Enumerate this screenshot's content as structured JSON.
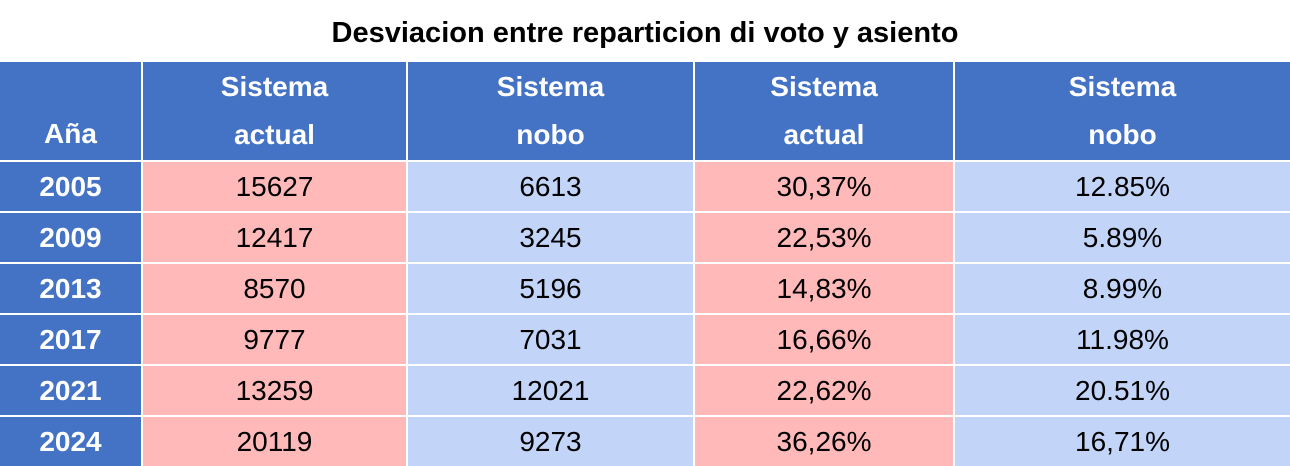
{
  "title": "Desviacion entre reparticion di voto y asiento",
  "colors": {
    "header": "#4472C4",
    "actual_cell": "#FFB9B9",
    "nobo_cell": "#C2D4F8"
  },
  "chart_data": {
    "type": "table",
    "title": "Desviacion entre reparticion di voto y asiento",
    "columns": [
      {
        "line1": "",
        "line2": "Aña"
      },
      {
        "line1": "Sistema",
        "line2": "actual"
      },
      {
        "line1": "Sistema",
        "line2": "nobo"
      },
      {
        "line1": "Sistema",
        "line2": "actual"
      },
      {
        "line1": "Sistema",
        "line2": "nobo"
      }
    ],
    "rows": [
      [
        "2005",
        "15627",
        "6613",
        "30,37%",
        "12.85%"
      ],
      [
        "2009",
        "12417",
        "3245",
        "22,53%",
        "5.89%"
      ],
      [
        "2013",
        "8570",
        "5196",
        "14,83%",
        "8.99%"
      ],
      [
        "2017",
        "9777",
        "7031",
        "16,66%",
        "11.98%"
      ],
      [
        "2021",
        "13259",
        "12021",
        "22,62%",
        "20.51%"
      ],
      [
        "2024",
        "20119",
        "9273",
        "36,26%",
        "16,71%"
      ]
    ]
  }
}
